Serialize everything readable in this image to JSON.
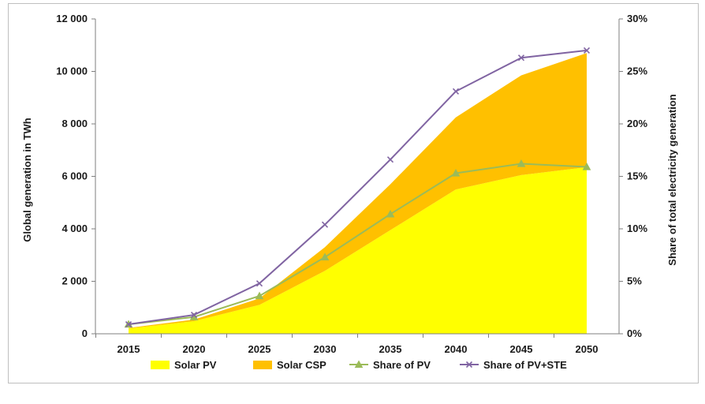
{
  "chart_data": {
    "type": "area",
    "x": [
      "2015",
      "2020",
      "2025",
      "2030",
      "2035",
      "2040",
      "2045",
      "2050"
    ],
    "ylabel": "Global generation in TWh",
    "y2label": "Share of total electricity generation",
    "ylim": [
      0,
      12000
    ],
    "y2lim": [
      0,
      30
    ],
    "yticks": [
      "0",
      "2 000",
      "4 000",
      "6 000",
      "8 000",
      "10 000",
      "12 000"
    ],
    "y2ticks": [
      "0%",
      "5%",
      "10%",
      "15%",
      "20%",
      "25%",
      "30%"
    ],
    "legend_position": "bottom",
    "grid": false,
    "series": [
      {
        "name": "Solar PV",
        "kind": "area",
        "axis": "left",
        "color": "#ffff00",
        "values": [
          200,
          480,
          1100,
          2400,
          3950,
          5500,
          6050,
          6350
        ]
      },
      {
        "name": "Solar CSP",
        "kind": "area",
        "axis": "left",
        "color": "#ffc000",
        "values": [
          20,
          60,
          250,
          900,
          1750,
          2750,
          3800,
          4350
        ]
      },
      {
        "name": "Share of PV",
        "kind": "line",
        "axis": "right",
        "color": "#9bbb59",
        "marker": "triangle",
        "values": [
          0.9,
          1.6,
          3.6,
          7.3,
          11.4,
          15.3,
          16.2,
          15.9
        ]
      },
      {
        "name": "Share of PV+STE",
        "kind": "line",
        "axis": "right",
        "color": "#8064a2",
        "marker": "x",
        "values": [
          0.9,
          1.8,
          4.8,
          10.4,
          16.6,
          23.1,
          26.3,
          27.0
        ]
      }
    ]
  }
}
